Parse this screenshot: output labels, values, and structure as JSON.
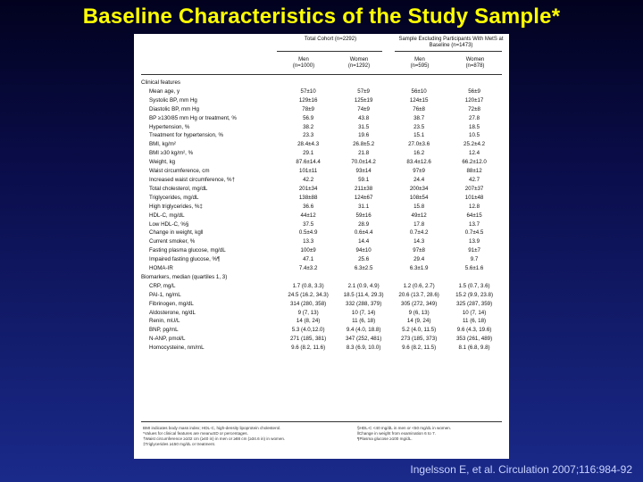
{
  "slide": {
    "title": "Baseline Characteristics of the Study Sample*",
    "citation": "Ingelsson E, et al. Circulation 2007;116:984-92"
  },
  "table": {
    "group_headers": [
      "Total Cohort (n=2292)",
      "Sample Excluding Participants With MetS at Baseline (n=1473)"
    ],
    "sub_headers": [
      [
        "Men",
        "(n=1000)"
      ],
      [
        "Women",
        "(n=1292)"
      ],
      [
        "Men",
        "(n=595)"
      ],
      [
        "Women",
        "(n=878)"
      ]
    ],
    "sections": [
      {
        "title": "Clinical features",
        "rows": [
          {
            "label": "Mean age, y",
            "values": [
              "57±10",
              "57±9",
              "56±10",
              "56±9"
            ]
          },
          {
            "label": "Systolic BP, mm Hg",
            "values": [
              "129±16",
              "125±19",
              "124±15",
              "120±17"
            ]
          },
          {
            "label": "Diastolic BP, mm Hg",
            "values": [
              "78±9",
              "74±9",
              "76±8",
              "72±8"
            ]
          },
          {
            "label": "BP ≥130/85 mm Hg or treatment, %",
            "values": [
              "56.9",
              "43.8",
              "38.7",
              "27.8"
            ]
          },
          {
            "label": "Hypertension, %",
            "values": [
              "38.2",
              "31.5",
              "23.5",
              "18.5"
            ]
          },
          {
            "label": "Treatment for hypertension, %",
            "values": [
              "23.3",
              "19.6",
              "15.1",
              "10.5"
            ]
          },
          {
            "label": "BMI, kg/m²",
            "values": [
              "28.4±4.3",
              "26.8±5.2",
              "27.0±3.6",
              "25.2±4.2"
            ]
          },
          {
            "label": "BMI ≥30 kg/m², %",
            "values": [
              "29.1",
              "21.8",
              "16.2",
              "12.4"
            ]
          },
          {
            "label": "Weight, kg",
            "values": [
              "87.6±14.4",
              "70.0±14.2",
              "83.4±12.6",
              "66.2±12.0"
            ]
          },
          {
            "label": "Waist circumference, cm",
            "values": [
              "101±11",
              "93±14",
              "97±9",
              "88±12"
            ]
          },
          {
            "label": "Increased waist circumference, %†",
            "values": [
              "42.2",
              "59.1",
              "24.4",
              "42.7"
            ]
          },
          {
            "label": "Total cholesterol, mg/dL",
            "values": [
              "201±34",
              "211±38",
              "200±34",
              "207±37"
            ]
          },
          {
            "label": "Triglycerides, mg/dL",
            "values": [
              "138±88",
              "124±67",
              "108±54",
              "101±48"
            ]
          },
          {
            "label": "High triglycerides, %‡",
            "values": [
              "36.6",
              "31.1",
              "15.8",
              "12.8"
            ]
          },
          {
            "label": "HDL-C, mg/dL",
            "values": [
              "44±12",
              "59±16",
              "49±12",
              "64±15"
            ]
          },
          {
            "label": "Low HDL-C, %§",
            "values": [
              "37.5",
              "28.9",
              "17.8",
              "13.7"
            ]
          },
          {
            "label": "Change in weight, kg‖",
            "values": [
              "0.5±4.9",
              "0.6±4.4",
              "0.7±4.2",
              "0.7±4.5"
            ]
          },
          {
            "label": "Current smoker, %",
            "values": [
              "13.3",
              "14.4",
              "14.3",
              "13.9"
            ]
          },
          {
            "label": "Fasting plasma glucose, mg/dL",
            "values": [
              "100±9",
              "94±10",
              "97±8",
              "91±7"
            ]
          },
          {
            "label": "Impaired fasting glucose, %¶",
            "values": [
              "47.1",
              "25.6",
              "29.4",
              "9.7"
            ]
          },
          {
            "label": "HOMA-IR",
            "values": [
              "7.4±3.2",
              "6.3±2.5",
              "6.3±1.9",
              "5.6±1.6"
            ]
          }
        ]
      },
      {
        "title": "Biomarkers, median (quartiles 1, 3)",
        "rows": [
          {
            "label": "CRP, mg/L",
            "values": [
              "1.7 (0.8, 3.3)",
              "2.1 (0.9, 4.9)",
              "1.2 (0.6, 2.7)",
              "1.5 (0.7, 3.6)"
            ]
          },
          {
            "label": "PAI-1, ng/mL",
            "values": [
              "24.5 (16.2, 34.3)",
              "18.5 (11.4, 29.3)",
              "20.6 (13.7, 28.6)",
              "15.2 (9.9, 23.8)"
            ]
          },
          {
            "label": "Fibrinogen, mg/dL",
            "values": [
              "314 (280, 358)",
              "332 (288, 379)",
              "305 (272, 349)",
              "325 (287, 359)"
            ]
          },
          {
            "label": "Aldosterone, ng/dL",
            "values": [
              "9 (7, 13)",
              "10 (7, 14)",
              "9 (6, 13)",
              "10 (7, 14)"
            ]
          },
          {
            "label": "Renin, mU/L",
            "values": [
              "14 (8, 24)",
              "11 (6, 18)",
              "14 (9, 24)",
              "11 (6, 18)"
            ]
          },
          {
            "label": "BNP, pg/mL",
            "values": [
              "5.3 (4.0,12.0)",
              "9.4 (4.0, 18.8)",
              "5.2 (4.0, 11.5)",
              "9.6 (4.3, 19.6)"
            ]
          },
          {
            "label": "N-ANP, pmol/L",
            "values": [
              "271 (185, 381)",
              "347 (252, 481)",
              "273 (185, 373)",
              "353 (261, 489)"
            ]
          },
          {
            "label": "Homocysteine, nm/mL",
            "values": [
              "9.6 (8.2, 11.6)",
              "8.3 (6.9, 10.0)",
              "9.6 (8.2, 11.5)",
              "8.1 (6.8, 9.8)"
            ]
          }
        ]
      }
    ],
    "footnotes": {
      "left": [
        "BMI indicates body mass index; HDL-C, high-density lipoprotein cholesterol.",
        "*Values for clinical features are mean±SD or percentages.",
        "†Waist circumference ≥102 cm (≥40 in) in men or ≥88 cm (≥34.6 in) in women.",
        "‡Triglycerides ≥150 mg/dL or treatment."
      ],
      "right": [
        "§HDL-C <40 mg/dL in men or <50 mg/dL in women.",
        "‖Change in weight from examination 6 to 7.",
        "¶Plasma glucose ≥100 mg/dL."
      ]
    }
  }
}
